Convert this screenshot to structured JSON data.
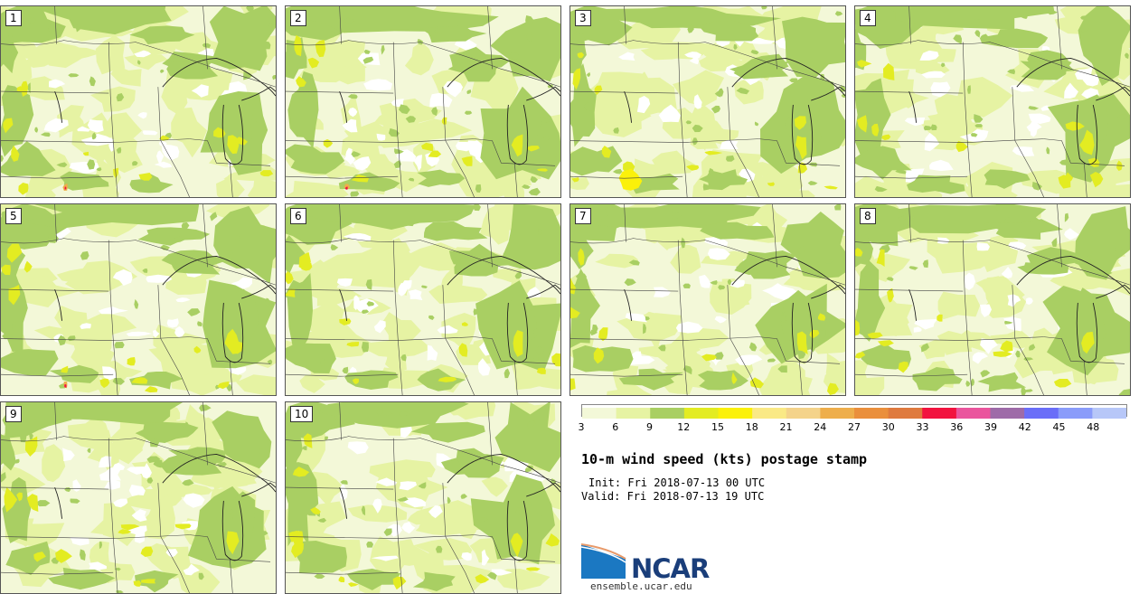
{
  "panels": [
    {
      "label": "1"
    },
    {
      "label": "2"
    },
    {
      "label": "3"
    },
    {
      "label": "4"
    },
    {
      "label": "5"
    },
    {
      "label": "6"
    },
    {
      "label": "7"
    },
    {
      "label": "8"
    },
    {
      "label": "9"
    },
    {
      "label": "10"
    }
  ],
  "colorbar": {
    "tick_labels": [
      "3",
      "6",
      "9",
      "12",
      "15",
      "18",
      "21",
      "24",
      "27",
      "30",
      "33",
      "36",
      "39",
      "42",
      "45",
      "48"
    ],
    "colors": [
      "#f3f8d8",
      "#e6f3a3",
      "#a9cf63",
      "#e3ec22",
      "#fbf10a",
      "#fae985",
      "#f4d38a",
      "#eeae4b",
      "#ea8f3c",
      "#df7a3e",
      "#f2133f",
      "#ea559d",
      "#9e6ba8",
      "#6a6ef8",
      "#8a9cfa",
      "#b7c7f8"
    ]
  },
  "title": "10-m wind speed (kts) postage stamp",
  "init": "Init: Fri 2018-07-13 00 UTC",
  "valid": "Valid: Fri 2018-07-13 19 UTC",
  "logo": {
    "text": "NCAR",
    "site": "ensemble.ucar.edu"
  }
}
